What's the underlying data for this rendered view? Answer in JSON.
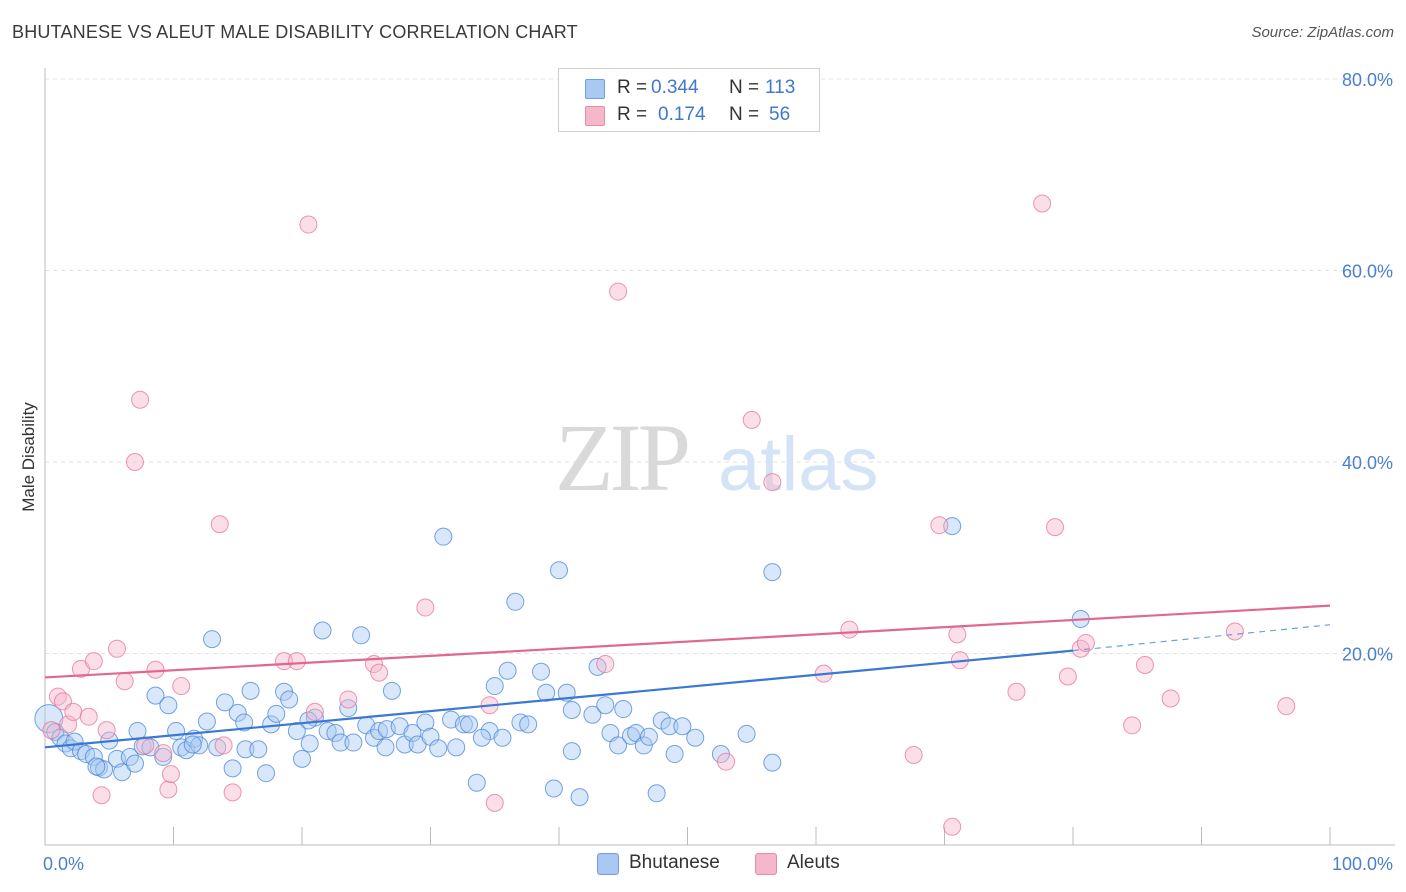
{
  "title": "BHUTANESE VS ALEUT MALE DISABILITY CORRELATION CHART",
  "source": "Source: ZipAtlas.com",
  "watermark": {
    "zip": "ZIP",
    "atlas": "atlas"
  },
  "legend": {
    "rows": [
      {
        "r_label": "R = ",
        "r_value": "0.344",
        "n_label": "N = ",
        "n_value": "113",
        "color": "#a9c9f2"
      },
      {
        "r_label": "R = ",
        "r_value": "0.174",
        "n_label": "N = ",
        "n_value": "56",
        "color": "#f5b8cb"
      }
    ]
  },
  "bottom_legend": [
    {
      "label": "Bhutanese",
      "color": "#a9c9f2"
    },
    {
      "label": "Aleuts",
      "color": "#f5b8cb"
    }
  ],
  "chart_data": {
    "type": "scatter",
    "title": "BHUTANESE VS ALEUT MALE DISABILITY CORRELATION CHART",
    "xlabel": "",
    "ylabel": "Male Disability",
    "xlim": [
      0,
      100
    ],
    "ylim": [
      0,
      80
    ],
    "x_tick_labels": {
      "min": "0.0%",
      "max": "100.0%"
    },
    "y_ticks": [
      {
        "value": 20,
        "label": "20.0%"
      },
      {
        "value": 40,
        "label": "40.0%"
      },
      {
        "value": 60,
        "label": "60.0%"
      },
      {
        "value": 80,
        "label": "80.0%"
      }
    ],
    "series": [
      {
        "name": "Bhutanese",
        "color": "#4a86d8",
        "fill": "#a9c9f2",
        "trend": {
          "x0": 0,
          "y0": 10.2,
          "x1": 80,
          "y1": 20.3,
          "dash_to_x": 100,
          "dash_to_y": 23
        },
        "points": [
          [
            0.3,
            13.2
          ],
          [
            0.8,
            11.8
          ],
          [
            1.2,
            11.2
          ],
          [
            1.6,
            10.6
          ],
          [
            2.0,
            10.1
          ],
          [
            2.3,
            10.8
          ],
          [
            2.8,
            9.8
          ],
          [
            3.2,
            9.5
          ],
          [
            3.8,
            9.2
          ],
          [
            4.2,
            8.1
          ],
          [
            4.6,
            7.9
          ],
          [
            5.0,
            10.9
          ],
          [
            5.6,
            9.0
          ],
          [
            6.0,
            7.6
          ],
          [
            6.6,
            9.2
          ],
          [
            7.2,
            11.9
          ],
          [
            7.6,
            10.3
          ],
          [
            8.2,
            10.2
          ],
          [
            8.6,
            15.6
          ],
          [
            9.2,
            9.2
          ],
          [
            9.6,
            14.6
          ],
          [
            10.2,
            11.9
          ],
          [
            10.6,
            10.2
          ],
          [
            11.0,
            9.9
          ],
          [
            11.6,
            11.1
          ],
          [
            12.0,
            10.4
          ],
          [
            12.6,
            12.9
          ],
          [
            13.0,
            21.5
          ],
          [
            13.4,
            10.2
          ],
          [
            14.0,
            14.9
          ],
          [
            14.6,
            8.0
          ],
          [
            15.0,
            13.8
          ],
          [
            15.6,
            10.0
          ],
          [
            16.0,
            16.1
          ],
          [
            16.6,
            10.0
          ],
          [
            17.2,
            7.5
          ],
          [
            17.6,
            12.6
          ],
          [
            18.0,
            13.7
          ],
          [
            18.6,
            16.0
          ],
          [
            19.0,
            15.2
          ],
          [
            19.6,
            11.9
          ],
          [
            20.0,
            9.0
          ],
          [
            20.6,
            10.6
          ],
          [
            21.0,
            13.3
          ],
          [
            21.6,
            22.4
          ],
          [
            22.0,
            11.9
          ],
          [
            22.6,
            11.7
          ],
          [
            23.0,
            10.7
          ],
          [
            23.6,
            14.3
          ],
          [
            24.0,
            10.7
          ],
          [
            24.6,
            21.9
          ],
          [
            25.0,
            12.5
          ],
          [
            25.6,
            11.2
          ],
          [
            26.0,
            11.9
          ],
          [
            26.6,
            12.1
          ],
          [
            27.0,
            16.1
          ],
          [
            27.6,
            12.4
          ],
          [
            28.0,
            10.5
          ],
          [
            28.6,
            11.7
          ],
          [
            29.0,
            10.5
          ],
          [
            29.6,
            12.8
          ],
          [
            30.0,
            11.3
          ],
          [
            30.6,
            10.1
          ],
          [
            31.0,
            32.2
          ],
          [
            31.6,
            13.1
          ],
          [
            32.0,
            10.2
          ],
          [
            32.6,
            12.6
          ],
          [
            33.0,
            12.6
          ],
          [
            33.6,
            6.5
          ],
          [
            34.6,
            11.9
          ],
          [
            35.0,
            16.6
          ],
          [
            35.6,
            11.2
          ],
          [
            36.0,
            18.2
          ],
          [
            36.6,
            25.4
          ],
          [
            37.0,
            12.8
          ],
          [
            37.6,
            12.6
          ],
          [
            38.6,
            18.1
          ],
          [
            39.0,
            15.9
          ],
          [
            39.6,
            5.9
          ],
          [
            40.0,
            28.7
          ],
          [
            40.6,
            15.9
          ],
          [
            41.0,
            14.1
          ],
          [
            41.6,
            5.0
          ],
          [
            42.6,
            13.6
          ],
          [
            43.0,
            18.6
          ],
          [
            43.6,
            14.6
          ],
          [
            44.0,
            11.7
          ],
          [
            44.6,
            10.4
          ],
          [
            45.0,
            14.2
          ],
          [
            45.6,
            11.4
          ],
          [
            46.0,
            11.7
          ],
          [
            46.6,
            10.4
          ],
          [
            47.0,
            11.3
          ],
          [
            47.6,
            5.4
          ],
          [
            48.0,
            13.0
          ],
          [
            48.6,
            12.4
          ],
          [
            49.0,
            9.5
          ],
          [
            49.6,
            12.4
          ],
          [
            50.6,
            11.2
          ],
          [
            52.6,
            9.5
          ],
          [
            54.6,
            11.6
          ],
          [
            56.6,
            8.6
          ],
          [
            56.6,
            28.5
          ],
          [
            70.6,
            33.3
          ],
          [
            80.6,
            23.6
          ],
          [
            11.5,
            10.5
          ],
          [
            15.5,
            12.8
          ],
          [
            20.5,
            13.0
          ],
          [
            26.5,
            10.2
          ],
          [
            34.0,
            11.2
          ],
          [
            41.0,
            9.8
          ],
          [
            7.0,
            8.5
          ],
          [
            4.0,
            8.2
          ]
        ]
      },
      {
        "name": "Aleuts",
        "color": "#e8739b",
        "fill": "#f5b8cb",
        "trend": {
          "x0": 0,
          "y0": 17.5,
          "x1": 100,
          "y1": 25.0
        },
        "points": [
          [
            0.5,
            12.0
          ],
          [
            1.0,
            15.5
          ],
          [
            1.4,
            15.0
          ],
          [
            1.8,
            12.6
          ],
          [
            2.2,
            13.9
          ],
          [
            2.8,
            18.4
          ],
          [
            3.4,
            13.4
          ],
          [
            3.8,
            19.2
          ],
          [
            4.4,
            5.2
          ],
          [
            4.8,
            12.0
          ],
          [
            5.6,
            20.5
          ],
          [
            6.2,
            17.1
          ],
          [
            7.0,
            40.0
          ],
          [
            7.4,
            46.5
          ],
          [
            7.8,
            10.4
          ],
          [
            8.6,
            18.3
          ],
          [
            9.2,
            9.6
          ],
          [
            9.6,
            5.8
          ],
          [
            9.8,
            7.4
          ],
          [
            10.6,
            16.6
          ],
          [
            13.6,
            33.5
          ],
          [
            13.9,
            10.4
          ],
          [
            14.6,
            5.5
          ],
          [
            18.6,
            19.2
          ],
          [
            19.6,
            19.2
          ],
          [
            20.5,
            64.8
          ],
          [
            21.0,
            13.9
          ],
          [
            23.6,
            15.2
          ],
          [
            25.6,
            18.9
          ],
          [
            26.0,
            18.0
          ],
          [
            29.6,
            24.8
          ],
          [
            34.6,
            14.6
          ],
          [
            35.0,
            4.4
          ],
          [
            43.6,
            18.9
          ],
          [
            44.6,
            57.8
          ],
          [
            53.0,
            8.7
          ],
          [
            55.0,
            44.4
          ],
          [
            56.6,
            37.9
          ],
          [
            60.6,
            17.9
          ],
          [
            62.6,
            22.5
          ],
          [
            67.6,
            9.4
          ],
          [
            69.6,
            33.4
          ],
          [
            70.6,
            1.9
          ],
          [
            71.0,
            22.0
          ],
          [
            71.2,
            19.3
          ],
          [
            75.6,
            16.0
          ],
          [
            77.6,
            67.0
          ],
          [
            78.6,
            33.2
          ],
          [
            79.6,
            17.6
          ],
          [
            80.6,
            20.5
          ],
          [
            81.0,
            21.1
          ],
          [
            84.6,
            12.5
          ],
          [
            85.6,
            18.8
          ],
          [
            87.6,
            15.3
          ],
          [
            92.6,
            22.3
          ],
          [
            96.6,
            14.5
          ]
        ]
      }
    ]
  }
}
